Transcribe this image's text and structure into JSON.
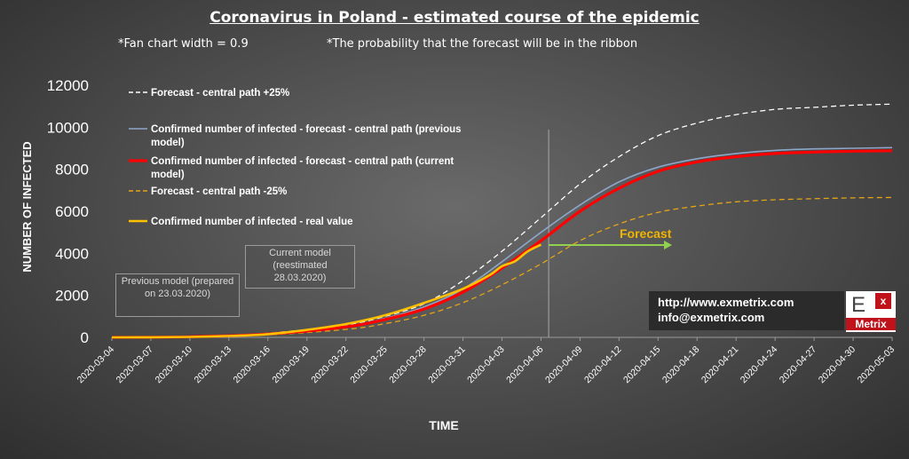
{
  "header": {
    "title": "Coronavirus in Poland - estimated course of the epidemic",
    "note_left": "*Fan chart width = 0.9",
    "note_right": "*The probability that the forecast will be in the ribbon"
  },
  "callouts": {
    "previous": "Previous model (prepared on 23.03.2020)",
    "current": "Current model (reestimated 28.03.2020)"
  },
  "forecast_label": "Forecast",
  "links": {
    "url": "http://www.exmetrix.com",
    "email": "info@exmetrix.com"
  },
  "logo": {
    "text_e": "E",
    "text_x": "x",
    "text_metrix": "Metrix"
  },
  "colors": {
    "upper": "#ffffff",
    "previous": "#8ea6c9",
    "current": "#ff0000",
    "lower": "#e6a417",
    "real": "#ffc000",
    "forecast_arrow": "#92d050",
    "background": "#4a4a4a"
  },
  "chart_data": {
    "type": "line",
    "xlabel": "TIME",
    "ylabel": "NUMBER OF INFECTED",
    "ylim": [
      0,
      12000
    ],
    "yticks": [
      "0",
      "2000",
      "4000",
      "6000",
      "8000",
      "10000",
      "12000"
    ],
    "grid": false,
    "legend_position": "top-left",
    "x_tick_labels": [
      "2020-03-04",
      "2020-03-07",
      "2020-03-10",
      "2020-03-13",
      "2020-03-16",
      "2020-03-19",
      "2020-03-22",
      "2020-03-25",
      "2020-03-28",
      "2020-03-31",
      "2020-04-03",
      "2020-04-06",
      "2020-04-09",
      "2020-04-12",
      "2020-04-15",
      "2020-04-18",
      "2020-04-21",
      "2020-04-24",
      "2020-04-27",
      "2020-04-30",
      "2020-05-03"
    ],
    "forecast_start": "2020-04-07",
    "series": [
      {
        "name": "Forecast - central path +25%",
        "style": "dashed",
        "x": [
          "2020-03-04",
          "2020-03-10",
          "2020-03-16",
          "2020-03-22",
          "2020-03-25",
          "2020-03-28",
          "2020-03-31",
          "2020-04-03",
          "2020-04-06",
          "2020-04-09",
          "2020-04-12",
          "2020-04-15",
          "2020-04-18",
          "2020-04-21",
          "2020-04-24",
          "2020-04-27",
          "2020-04-30",
          "2020-05-03"
        ],
        "y": [
          0,
          40,
          200,
          600,
          1000,
          1600,
          2700,
          4100,
          5700,
          7300,
          8600,
          9600,
          10200,
          10600,
          10850,
          10950,
          11050,
          11100
        ]
      },
      {
        "name": "Confirmed number of infected - forecast - central path (previous model)",
        "style": "solid",
        "x": [
          "2020-03-04",
          "2020-03-10",
          "2020-03-16",
          "2020-03-22",
          "2020-03-25",
          "2020-03-28",
          "2020-03-31",
          "2020-04-03",
          "2020-04-06",
          "2020-04-09",
          "2020-04-12",
          "2020-04-15",
          "2020-04-18",
          "2020-04-21",
          "2020-04-24",
          "2020-04-27",
          "2020-04-30",
          "2020-05-03"
        ],
        "y": [
          0,
          35,
          170,
          520,
          900,
          1450,
          2300,
          3600,
          5000,
          6300,
          7400,
          8100,
          8500,
          8750,
          8900,
          8970,
          9000,
          9030
        ]
      },
      {
        "name": "Confirmed number of infected - forecast - central path (current model)",
        "style": "solid-thick",
        "x": [
          "2020-03-04",
          "2020-03-10",
          "2020-03-16",
          "2020-03-22",
          "2020-03-25",
          "2020-03-28",
          "2020-03-31",
          "2020-04-03",
          "2020-04-06",
          "2020-04-09",
          "2020-04-12",
          "2020-04-15",
          "2020-04-18",
          "2020-04-21",
          "2020-04-24",
          "2020-04-27",
          "2020-04-30",
          "2020-05-03"
        ],
        "y": [
          0,
          30,
          160,
          500,
          850,
          1350,
          2150,
          3300,
          4600,
          6000,
          7100,
          7900,
          8350,
          8600,
          8750,
          8820,
          8860,
          8880
        ]
      },
      {
        "name": "Forecast - central path -25%",
        "style": "dashed",
        "x": [
          "2020-03-04",
          "2020-03-10",
          "2020-03-16",
          "2020-03-22",
          "2020-03-25",
          "2020-03-28",
          "2020-03-31",
          "2020-04-03",
          "2020-04-06",
          "2020-04-09",
          "2020-04-12",
          "2020-04-15",
          "2020-04-18",
          "2020-04-21",
          "2020-04-24",
          "2020-04-27",
          "2020-04-30",
          "2020-05-03"
        ],
        "y": [
          0,
          25,
          120,
          380,
          650,
          1050,
          1650,
          2500,
          3500,
          4600,
          5400,
          5950,
          6250,
          6450,
          6550,
          6600,
          6640,
          6660
        ]
      },
      {
        "name": "Confirmed number of infected - real value",
        "style": "solid",
        "x": [
          "2020-03-04",
          "2020-03-07",
          "2020-03-10",
          "2020-03-13",
          "2020-03-16",
          "2020-03-19",
          "2020-03-22",
          "2020-03-25",
          "2020-03-28",
          "2020-03-31",
          "2020-04-02",
          "2020-04-03",
          "2020-04-04",
          "2020-04-05",
          "2020-04-06"
        ],
        "y": [
          1,
          5,
          22,
          68,
          150,
          355,
          634,
          1051,
          1638,
          2311,
          2946,
          3383,
          3627,
          4102,
          4413
        ]
      }
    ]
  }
}
